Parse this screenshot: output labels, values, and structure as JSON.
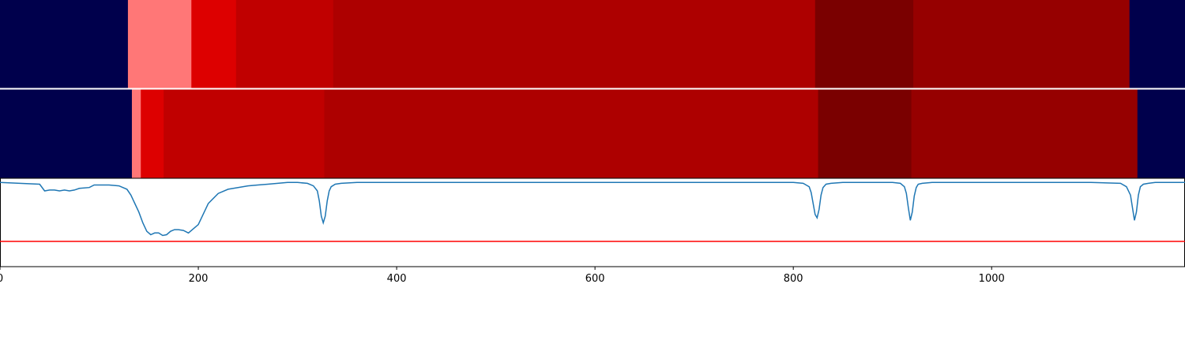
{
  "chart_data": [
    {
      "type": "heatmap",
      "title": "",
      "xlim": [
        0,
        1195
      ],
      "segments": [
        {
          "start": 0,
          "end": 129,
          "color": "#00004c"
        },
        {
          "start": 129,
          "end": 193,
          "color": "#ff7777"
        },
        {
          "start": 193,
          "end": 238,
          "color": "#dd0000"
        },
        {
          "start": 238,
          "end": 336,
          "color": "#c00000"
        },
        {
          "start": 336,
          "end": 822,
          "color": "#ad0000"
        },
        {
          "start": 822,
          "end": 921,
          "color": "#7a0000"
        },
        {
          "start": 921,
          "end": 1139,
          "color": "#960000"
        },
        {
          "start": 1139,
          "end": 1195,
          "color": "#00004c"
        }
      ]
    },
    {
      "type": "heatmap",
      "title": "",
      "xlim": [
        0,
        1195
      ],
      "segments": [
        {
          "start": 0,
          "end": 133,
          "color": "#00004c"
        },
        {
          "start": 133,
          "end": 142,
          "color": "#ff7777"
        },
        {
          "start": 142,
          "end": 165,
          "color": "#dd0000"
        },
        {
          "start": 165,
          "end": 327,
          "color": "#c00000"
        },
        {
          "start": 327,
          "end": 825,
          "color": "#ad0000"
        },
        {
          "start": 825,
          "end": 919,
          "color": "#7a0000"
        },
        {
          "start": 919,
          "end": 1147,
          "color": "#960000"
        },
        {
          "start": 1147,
          "end": 1195,
          "color": "#00004c"
        }
      ]
    },
    {
      "type": "line",
      "title": "",
      "xlabel": "",
      "ylabel": "",
      "xlim": [
        0,
        1195
      ],
      "ylim": [
        -1.0,
        0.05
      ],
      "xticks": [
        "0",
        "200",
        "400",
        "600",
        "800",
        "1000"
      ],
      "grid": false,
      "threshold": {
        "value": -0.7,
        "color": "#ff0000"
      },
      "series": [
        {
          "color": "#1f77b4",
          "x": [
            0,
            20,
            40,
            45,
            50,
            55,
            60,
            65,
            70,
            75,
            80,
            90,
            95,
            100,
            110,
            120,
            128,
            132,
            136,
            140,
            144,
            148,
            152,
            156,
            160,
            164,
            168,
            172,
            176,
            180,
            185,
            190,
            200,
            210,
            220,
            230,
            240,
            250,
            260,
            270,
            280,
            290,
            300,
            310,
            316,
            320,
            322,
            324,
            326,
            328,
            330,
            332,
            334,
            338,
            344,
            360,
            380,
            400,
            600,
            800,
            810,
            816,
            818,
            820,
            822,
            824,
            826,
            828,
            830,
            833,
            838,
            850,
            870,
            880,
            900,
            908,
            912,
            914,
            916,
            918,
            920,
            922,
            924,
            926,
            930,
            940,
            960,
            1000,
            1100,
            1130,
            1136,
            1140,
            1142,
            1144,
            1146,
            1148,
            1150,
            1153,
            1158,
            1165,
            1175,
            1195
          ],
          "y": [
            0,
            -0.01,
            -0.02,
            -0.1,
            -0.09,
            -0.09,
            -0.1,
            -0.09,
            -0.1,
            -0.09,
            -0.07,
            -0.06,
            -0.03,
            -0.03,
            -0.03,
            -0.04,
            -0.08,
            -0.15,
            -0.25,
            -0.35,
            -0.48,
            -0.58,
            -0.62,
            -0.6,
            -0.6,
            -0.63,
            -0.62,
            -0.58,
            -0.56,
            -0.56,
            -0.57,
            -0.6,
            -0.5,
            -0.25,
            -0.13,
            -0.08,
            -0.06,
            -0.04,
            -0.03,
            -0.02,
            -0.01,
            0,
            0,
            -0.01,
            -0.04,
            -0.1,
            -0.22,
            -0.4,
            -0.48,
            -0.4,
            -0.22,
            -0.1,
            -0.05,
            -0.02,
            -0.01,
            0,
            0,
            0,
            0,
            0,
            -0.01,
            -0.05,
            -0.12,
            -0.25,
            -0.38,
            -0.42,
            -0.32,
            -0.15,
            -0.06,
            -0.02,
            -0.01,
            0,
            0,
            0,
            0,
            -0.01,
            -0.05,
            -0.13,
            -0.3,
            -0.45,
            -0.35,
            -0.16,
            -0.06,
            -0.02,
            -0.01,
            0,
            0,
            0,
            0,
            -0.01,
            -0.05,
            -0.15,
            -0.3,
            -0.45,
            -0.35,
            -0.15,
            -0.05,
            -0.02,
            -0.01,
            0,
            0,
            0
          ]
        }
      ]
    }
  ]
}
